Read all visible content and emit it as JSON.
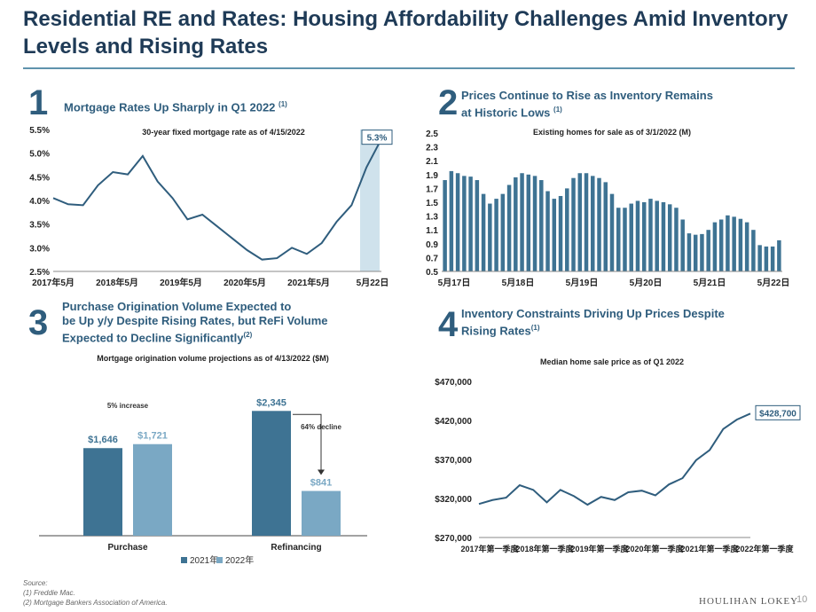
{
  "title": {
    "line1": "Residential RE and Rates: Housing Affordability Challenges Amid Inventory",
    "line2": "Levels and Rising Rates"
  },
  "panels": {
    "p1": {
      "num": "1",
      "head": "Mortgage Rates Up Sharply in Q1 2022",
      "note": "(1)",
      "subtitle": "30-year fixed mortgage rate as of 4/15/2022"
    },
    "p2": {
      "num": "2",
      "head": "Prices Continue to Rise as Inventory Remains",
      "head2": "at Historic Lows",
      "note": "(1)",
      "subtitle": "Existing homes for sale as of 3/1/2022 (M)"
    },
    "p3": {
      "num": "3",
      "head": "Purchase Origination Volume Expected to",
      "head2": "be Up y/y Despite Rising Rates, but ReFi Volume",
      "head3": "Expected to Decline Significantly",
      "note": "(2)",
      "subtitle": "Mortgage origination volume projections as of 4/13/2022 ($M)"
    },
    "p4": {
      "num": "4",
      "head": "Inventory Constraints Driving Up Prices Despite",
      "head2": "Rising Rates",
      "note": "(1)",
      "subtitle": "Median home sale price as of Q1 2022"
    }
  },
  "chart_data": [
    {
      "type": "line",
      "x": [
        "2017-05",
        "2017-08",
        "2017-11",
        "2018-02",
        "2018-05",
        "2018-08",
        "2018-11",
        "2019-02",
        "2019-05",
        "2019-08",
        "2019-11",
        "2020-02",
        "2020-05",
        "2020-08",
        "2020-11",
        "2021-02",
        "2021-05",
        "2021-08",
        "2021-11",
        "2022-01",
        "2022-02",
        "2022-03",
        "2022-04"
      ],
      "values": [
        4.05,
        3.92,
        3.9,
        4.32,
        4.6,
        4.55,
        4.94,
        4.4,
        4.05,
        3.6,
        3.7,
        3.45,
        3.2,
        2.95,
        2.75,
        2.78,
        3.0,
        2.87,
        3.1,
        3.55,
        3.9,
        4.7,
        5.3
      ],
      "xticks": [
        "2017年5月",
        "2018年5月",
        "2019年5月",
        "2020年5月",
        "2021年5月",
        "5月22日"
      ],
      "yticks": [
        "2.5%",
        "3.0%",
        "3.5%",
        "4.0%",
        "4.5%",
        "5.0%",
        "5.5%"
      ],
      "ylim": [
        2.5,
        5.5
      ],
      "end_label": "5.3%"
    },
    {
      "type": "bar",
      "values": [
        1.82,
        1.95,
        1.92,
        1.88,
        1.87,
        1.82,
        1.62,
        1.48,
        1.55,
        1.62,
        1.75,
        1.86,
        1.92,
        1.9,
        1.88,
        1.82,
        1.66,
        1.55,
        1.59,
        1.7,
        1.85,
        1.92,
        1.92,
        1.88,
        1.85,
        1.79,
        1.62,
        1.42,
        1.42,
        1.48,
        1.52,
        1.5,
        1.55,
        1.52,
        1.5,
        1.47,
        1.42,
        1.25,
        1.05,
        1.03,
        1.04,
        1.1,
        1.21,
        1.25,
        1.31,
        1.29,
        1.26,
        1.21,
        1.1,
        0.88,
        0.86,
        0.86,
        0.95
      ],
      "xticks": [
        "5月17日",
        "5月18日",
        "5月19日",
        "5月20日",
        "5月21日",
        "5月22日"
      ],
      "yticks": [
        "0.5",
        "0.7",
        "0.9",
        "1.1",
        "1.3",
        "1.5",
        "1.7",
        "1.9",
        "2.1",
        "2.3",
        "2.5"
      ],
      "ylim": [
        0.5,
        2.5
      ]
    },
    {
      "type": "bar",
      "categories": [
        "Purchase",
        "Refinancing"
      ],
      "series": [
        {
          "name": "2021年",
          "values": [
            1646,
            2345
          ],
          "labels": [
            "$1,646",
            "$2,345"
          ]
        },
        {
          "name": "2022年",
          "values": [
            1721,
            841
          ],
          "labels": [
            "$1,721",
            "$841"
          ]
        }
      ],
      "annotations": [
        "5% increase",
        "64% decline"
      ],
      "ylim": [
        0,
        2500
      ]
    },
    {
      "type": "line",
      "x": [
        "2017-Q1",
        "2017-Q2",
        "2017-Q3",
        "2017-Q4",
        "2018-Q1",
        "2018-Q2",
        "2018-Q3",
        "2018-Q4",
        "2019-Q1",
        "2019-Q2",
        "2019-Q3",
        "2019-Q4",
        "2020-Q1",
        "2020-Q2",
        "2020-Q3",
        "2020-Q4",
        "2021-Q1",
        "2021-Q2",
        "2021-Q3",
        "2021-Q4",
        "2022-Q1"
      ],
      "values": [
        313000,
        318000,
        321000,
        337000,
        331000,
        315000,
        331000,
        323000,
        312000,
        322000,
        318000,
        328000,
        330000,
        324000,
        338000,
        346000,
        369000,
        382000,
        409000,
        421000,
        428700
      ],
      "xticks": [
        "2017年第一季度",
        "2018年第一季度",
        "2019年第一季度",
        "2020年第一季度",
        "2021年第一季度",
        "2022年第一季度"
      ],
      "yticks": [
        "$270,000",
        "$320,000",
        "$370,000",
        "$420,000",
        "$470,000"
      ],
      "ylim": [
        270000,
        470000
      ],
      "end_label": "$428,700"
    }
  ],
  "footer": {
    "source": "Source:",
    "note1": "(1) Freddie Mac.",
    "note2": "(2) Mortgage Bankers Association of America.",
    "logo": "HOULIHAN LOKEY",
    "page": "10"
  }
}
